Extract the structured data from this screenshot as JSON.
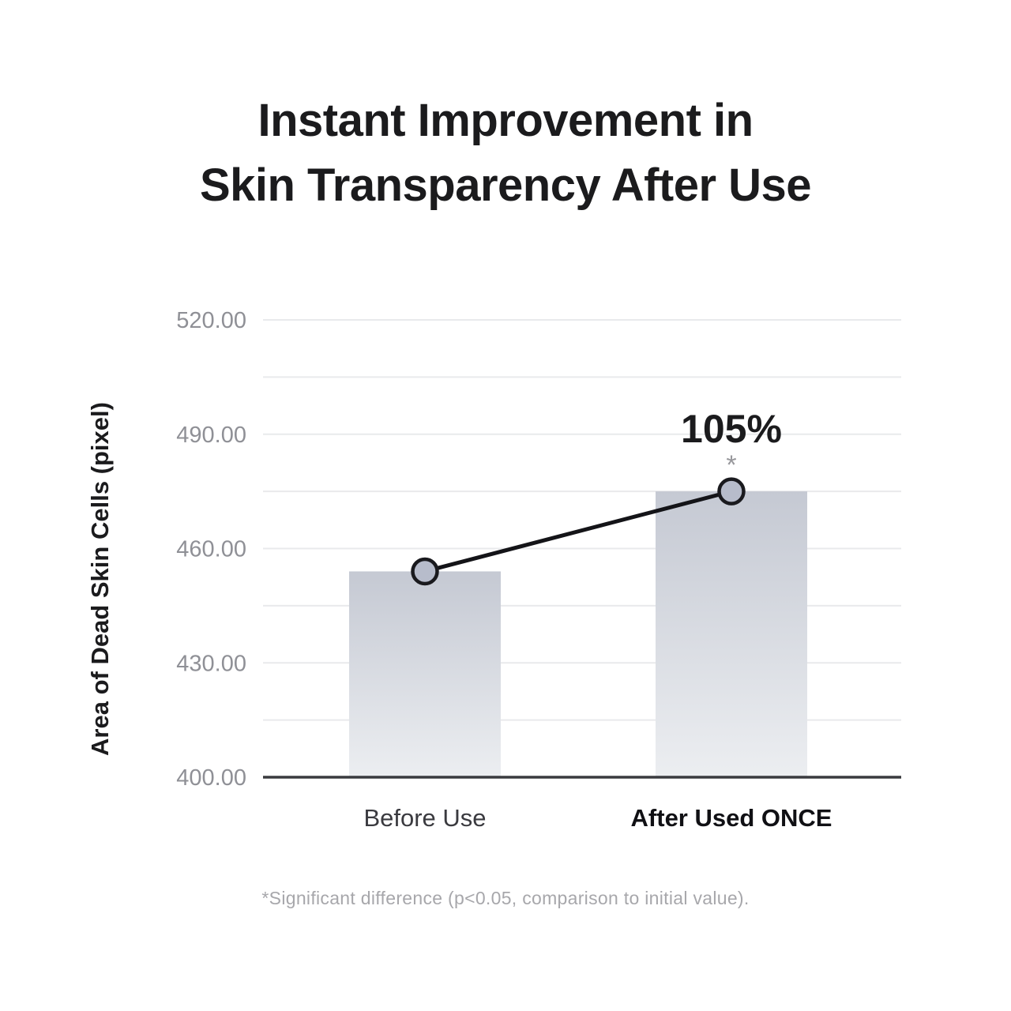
{
  "title": {
    "line1": "Instant Improvement in",
    "line2": "Skin Transparency After Use"
  },
  "footnote": "*Significant difference (p<0.05, comparison to initial value).",
  "colors": {
    "background": "#ffffff",
    "title_text": "#1b1b1d",
    "tick_text": "#8f9096",
    "grid_line": "#e9eaec",
    "baseline": "#3a3b3f",
    "bar_gradient_top": "#c5c9d3",
    "bar_gradient_bottom": "#eceef1",
    "connector_line": "#141418",
    "marker_fill": "#b7bccb",
    "marker_stroke": "#1a1a1e",
    "annotation_text": "#1b1b1d",
    "asterisk_text": "#98989c",
    "x_label_regular": "#3a3a3f",
    "x_label_emphasized": "#101014",
    "y_axis_title_text": "#1b1b1d",
    "footnote_text": "#a7a7ab"
  },
  "chart_data": {
    "type": "bar",
    "title": "Instant Improvement in Skin Transparency After Use",
    "categories": [
      "Before Use",
      "After Used ONCE"
    ],
    "values": [
      454,
      475
    ],
    "series": [
      {
        "name": "Area of Dead Skin Cells",
        "values": [
          454,
          475
        ]
      }
    ],
    "xlabel": "",
    "ylabel": "Area of Dead Skin Cells (pixel)",
    "ylim": [
      400,
      520
    ],
    "ytick_major_step": 30,
    "ytick_minor_step": 15,
    "ytick_labels": [
      "400.00",
      "430.00",
      "460.00",
      "490.00",
      "520.00"
    ],
    "ytick_decimals": 2,
    "grid": true,
    "legend": false,
    "emphasized_category": "After Used ONCE",
    "annotation": {
      "text": "105%",
      "marker": "*",
      "applies_to": "After Used ONCE"
    },
    "overlay": {
      "type": "line-with-markers",
      "connects": [
        "Before Use",
        "After Used ONCE"
      ]
    }
  }
}
